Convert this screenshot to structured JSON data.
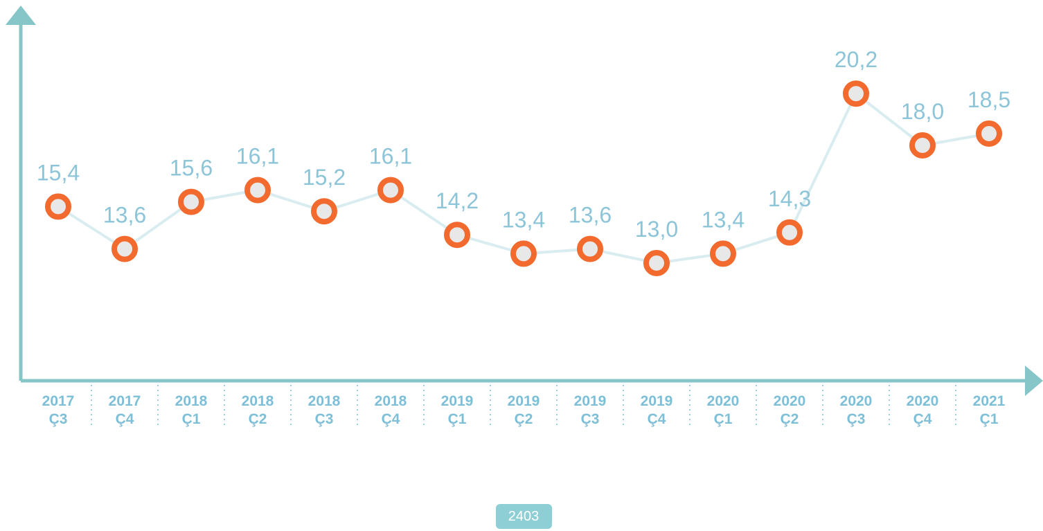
{
  "chart_data": {
    "type": "line",
    "categories": [
      [
        "2017",
        "Ç3"
      ],
      [
        "2017",
        "Ç4"
      ],
      [
        "2018",
        "Ç1"
      ],
      [
        "2018",
        "Ç2"
      ],
      [
        "2018",
        "Ç3"
      ],
      [
        "2018",
        "Ç4"
      ],
      [
        "2019",
        "Ç1"
      ],
      [
        "2019",
        "Ç2"
      ],
      [
        "2019",
        "Ç3"
      ],
      [
        "2019",
        "Ç4"
      ],
      [
        "2020",
        "Ç1"
      ],
      [
        "2020",
        "Ç2"
      ],
      [
        "2020",
        "Ç3"
      ],
      [
        "2020",
        "Ç4"
      ],
      [
        "2021",
        "Ç1"
      ]
    ],
    "values": [
      15.4,
      13.6,
      15.6,
      16.1,
      15.2,
      16.1,
      14.2,
      13.4,
      13.6,
      13.0,
      13.4,
      14.3,
      20.2,
      18.0,
      18.5
    ],
    "value_labels": [
      "15,4",
      "13,6",
      "15,6",
      "16,1",
      "15,2",
      "16,1",
      "14,2",
      "13,4",
      "13,6",
      "13,0",
      "13,4",
      "14,3",
      "20,2",
      "18,0",
      "18,5"
    ],
    "color": "#f26a2e",
    "ylim": [
      8,
      23
    ]
  },
  "footer": {
    "badge": "2403"
  }
}
